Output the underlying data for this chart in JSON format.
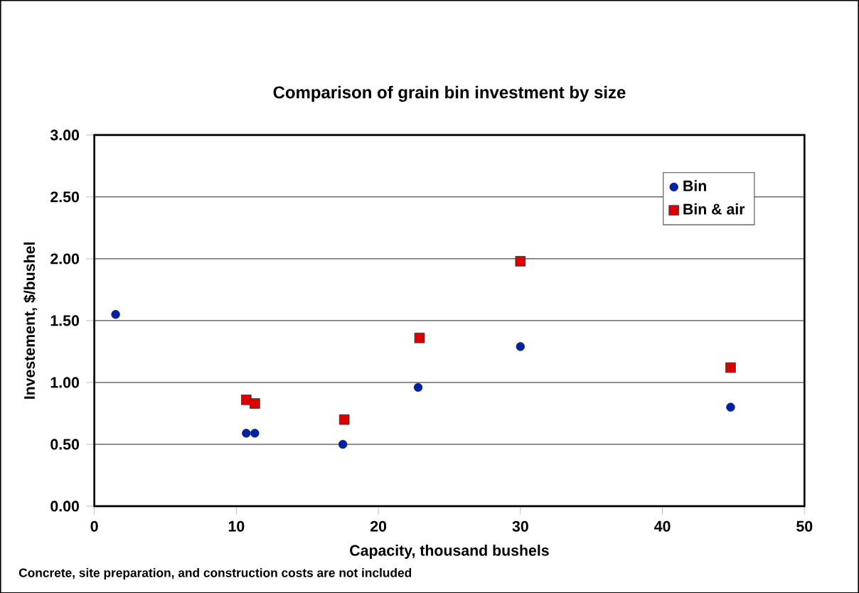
{
  "chart_data": {
    "type": "scatter",
    "title": "Comparison of grain bin investment by size",
    "xlabel": "Capacity, thousand bushels",
    "ylabel": "Investement, $/bushel",
    "xlim": [
      0,
      50
    ],
    "xticks": [
      0,
      10,
      20,
      30,
      40,
      50
    ],
    "ylim": [
      0,
      3
    ],
    "yticks": [
      {
        "value": 0,
        "label": "0.00"
      },
      {
        "value": 0.5,
        "label": "0.50"
      },
      {
        "value": 1,
        "label": "1.00"
      },
      {
        "value": 1.5,
        "label": "1.50"
      },
      {
        "value": 2,
        "label": "2.00"
      },
      {
        "value": 2.5,
        "label": "2.50"
      },
      {
        "value": 3,
        "label": "3.00"
      }
    ],
    "grid": "y",
    "legend": "top right",
    "series": [
      {
        "name": "Bin",
        "color": "#0022aa",
        "marker": "circle",
        "x": [
          1.5,
          10.7,
          11.3,
          17.5,
          22.8,
          30,
          44.8
        ],
        "values": [
          1.55,
          0.59,
          0.59,
          0.5,
          0.96,
          1.29,
          0.8
        ]
      },
      {
        "name": "Bin & air",
        "color": "#dd0000",
        "marker": "square",
        "x": [
          10.7,
          11.3,
          17.6,
          22.9,
          30,
          44.8
        ],
        "values": [
          0.86,
          0.83,
          0.7,
          1.36,
          1.98,
          1.12
        ]
      }
    ],
    "annotations": [
      "Concrete, site preparation, and construction costs are not included"
    ]
  }
}
